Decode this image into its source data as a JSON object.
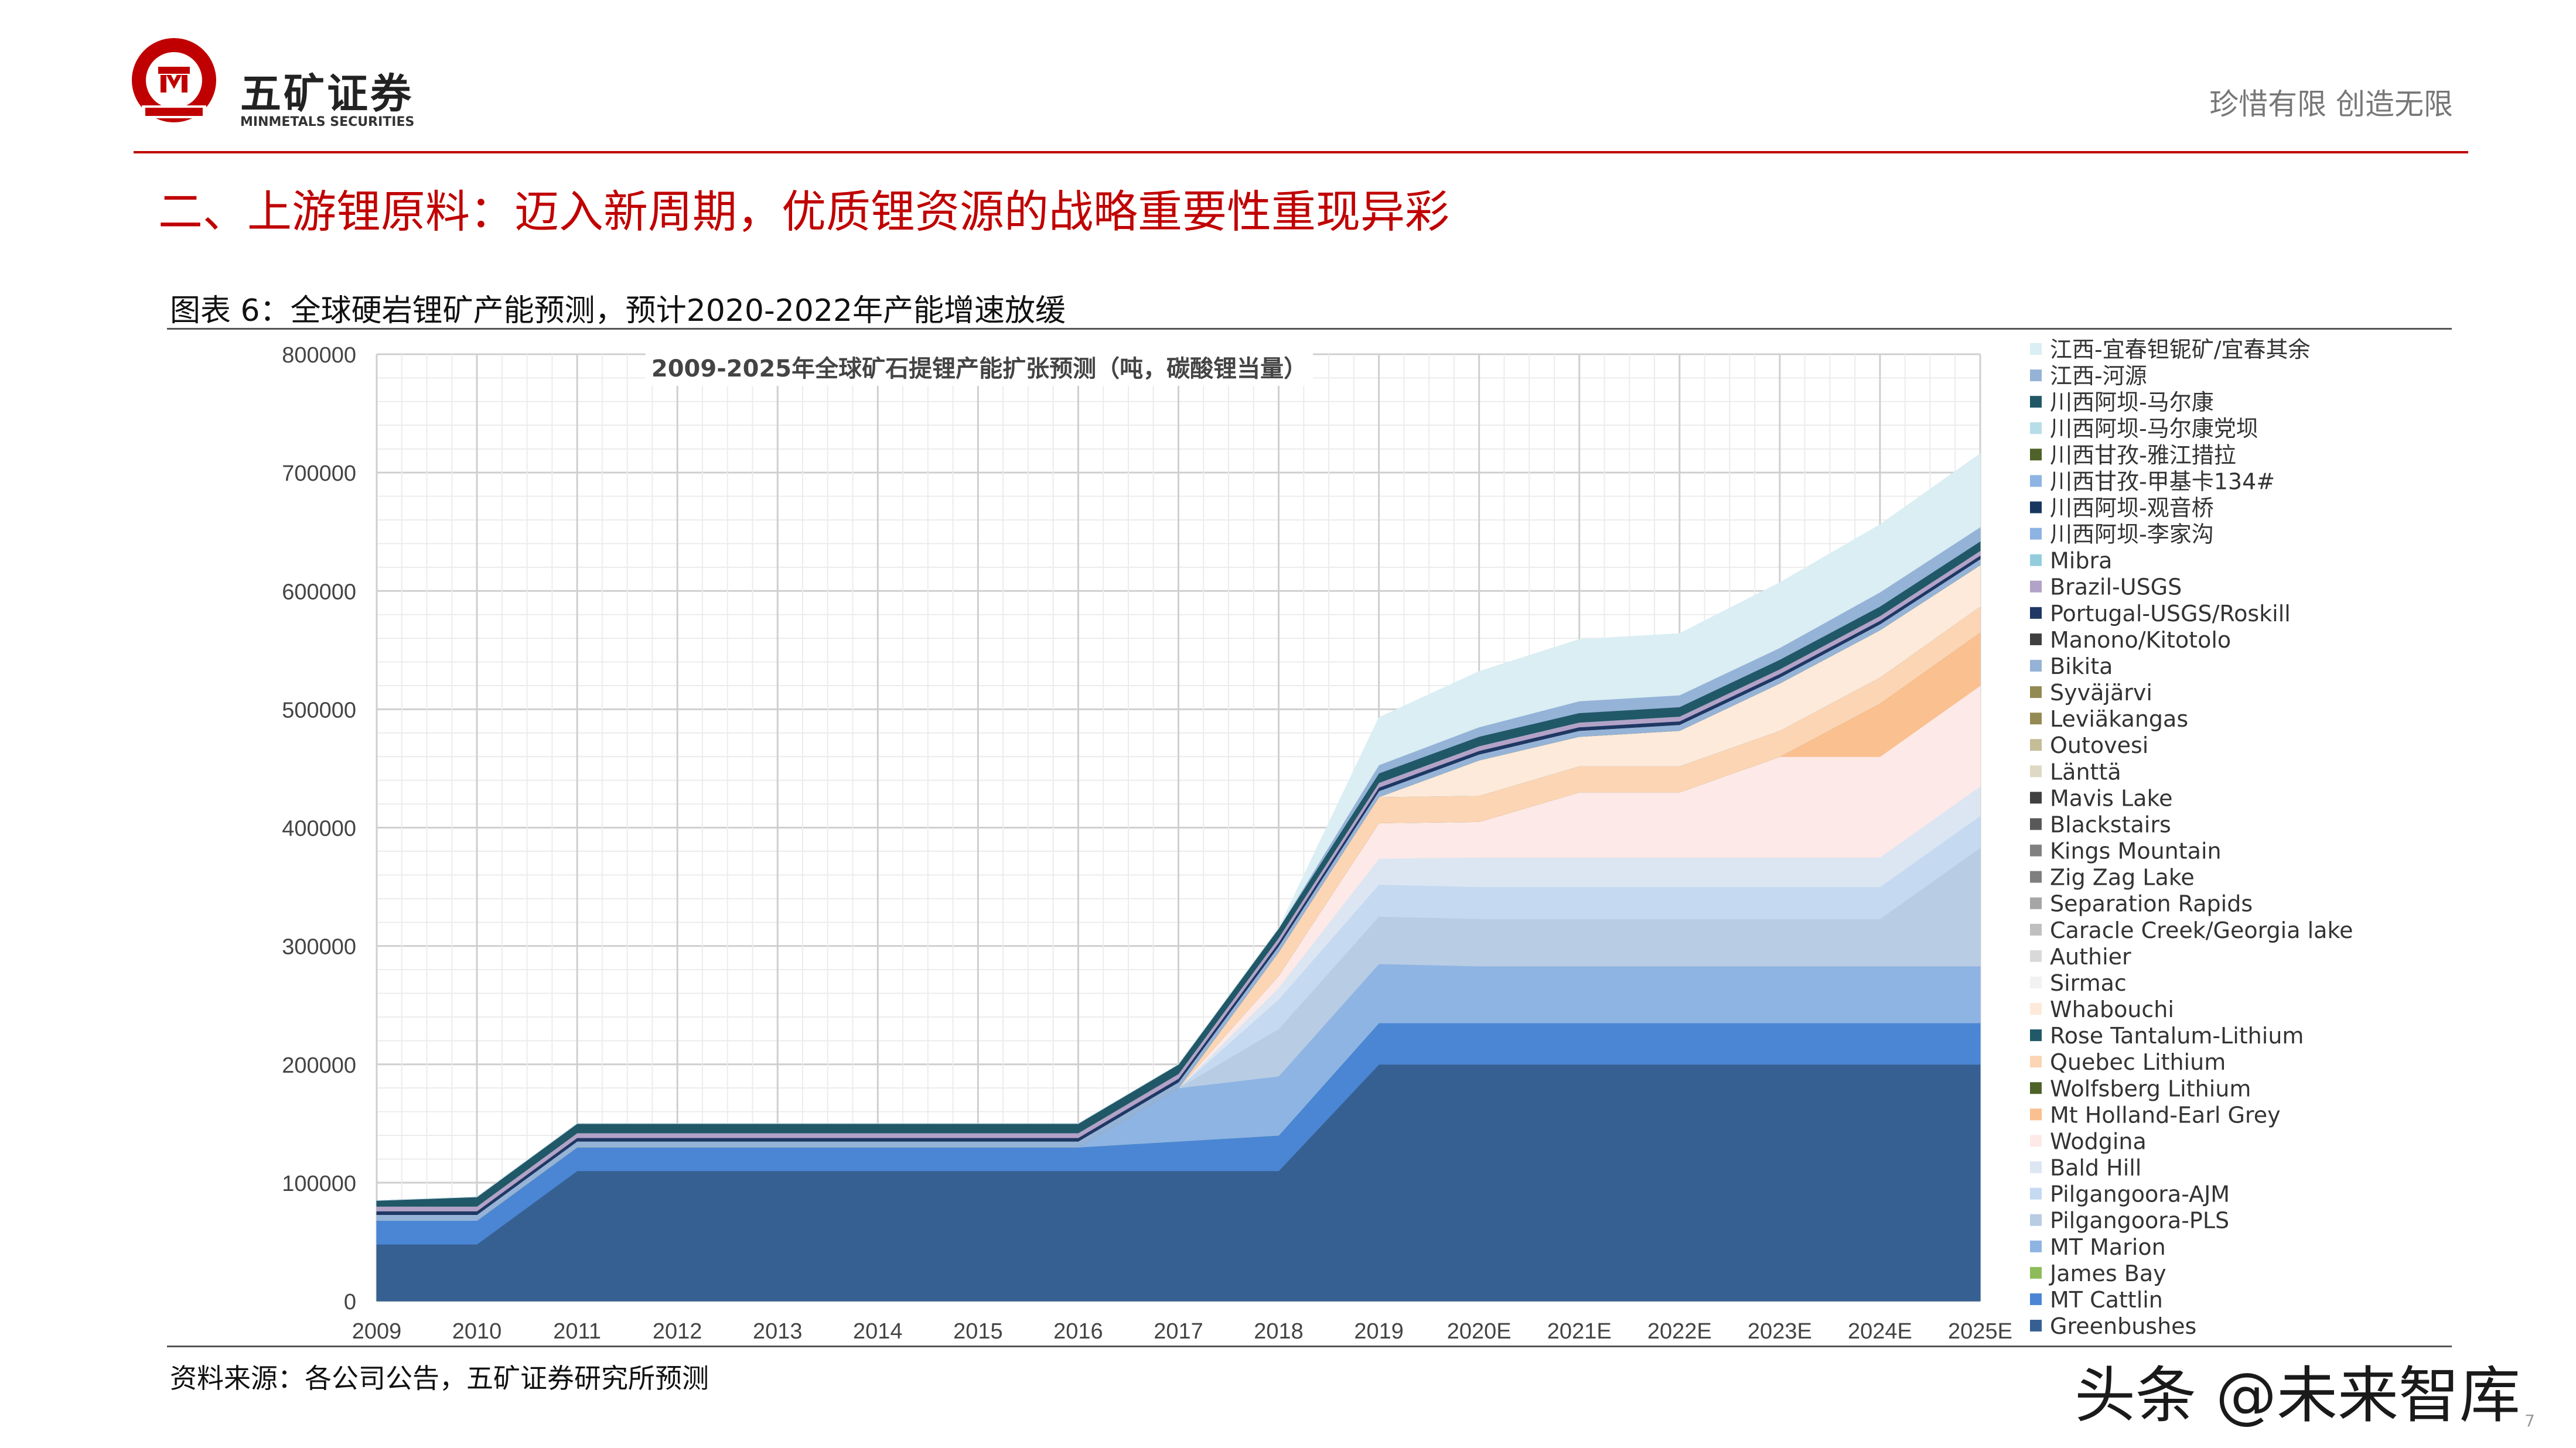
{
  "header": {
    "brand_cn": "五矿证券",
    "brand_en": "MINMETALS SECURITIES",
    "logo_ring_text": "MINMETALS",
    "slogan": "珍惜有限  创造无限"
  },
  "section_title": "二、上游锂原料：迈入新周期，优质锂资源的战略重要性重现异彩",
  "figure_caption": "图表 6：全球硬岩锂矿产能预测，预计2020-2022年产能增速放缓",
  "source": "资料来源：各公司公告，五矿证券研究所预测",
  "watermark": "头条 @未来智库",
  "page_number": "7",
  "colors": {
    "brand_red": "#c00000",
    "grid": "#d9d9d9"
  },
  "chart_data": {
    "type": "area",
    "stacked": true,
    "title": "2009-2025年全球矿石提锂产能扩张预测（吨，碳酸锂当量）",
    "xlabel": "",
    "ylabel": "",
    "ylim": [
      0,
      800000
    ],
    "yticks": [
      0,
      100000,
      200000,
      300000,
      400000,
      500000,
      600000,
      700000,
      800000
    ],
    "ytick_labels": [
      "0",
      "100000",
      "200000",
      "300000",
      "400000",
      "500000",
      "600000",
      "700000",
      "800000"
    ],
    "categories": [
      "2009",
      "2010",
      "2011",
      "2012",
      "2013",
      "2014",
      "2015",
      "2016",
      "2017",
      "2018",
      "2019",
      "2020E",
      "2021E",
      "2022E",
      "2023E",
      "2024E",
      "2025E"
    ],
    "grid": true,
    "legend_position": "right",
    "series": [
      {
        "name": "Greenbushes",
        "color": "#376092",
        "values": [
          48000,
          48000,
          110000,
          110000,
          110000,
          110000,
          110000,
          110000,
          110000,
          110000,
          200000,
          200000,
          200000,
          200000,
          200000,
          200000,
          200000
        ]
      },
      {
        "name": "MT Cattlin",
        "color": "#4a86d4",
        "values": [
          20000,
          20000,
          20000,
          20000,
          20000,
          20000,
          20000,
          20000,
          25000,
          30000,
          35000,
          35000,
          35000,
          35000,
          35000,
          35000,
          35000
        ]
      },
      {
        "name": "James Bay",
        "color": "#8fbc5a",
        "values": [
          0,
          0,
          0,
          0,
          0,
          0,
          0,
          0,
          0,
          0,
          0,
          0,
          0,
          0,
          0,
          0,
          0
        ]
      },
      {
        "name": "MT Marion",
        "color": "#8eb4e3",
        "values": [
          0,
          0,
          0,
          0,
          0,
          0,
          0,
          0,
          45000,
          50000,
          50000,
          48000,
          48000,
          48000,
          48000,
          48000,
          48000
        ]
      },
      {
        "name": "Pilgangoora-PLS",
        "color": "#b8cce4",
        "values": [
          0,
          0,
          0,
          0,
          0,
          0,
          0,
          0,
          0,
          40000,
          40000,
          40000,
          40000,
          40000,
          40000,
          40000,
          100000
        ]
      },
      {
        "name": "Pilgangoora-AJM",
        "color": "#c5d9f1",
        "values": [
          0,
          0,
          0,
          0,
          0,
          0,
          0,
          0,
          0,
          25000,
          27000,
          27000,
          27000,
          27000,
          27000,
          27000,
          27000
        ]
      },
      {
        "name": "Bald Hill",
        "color": "#dce6f2",
        "values": [
          0,
          0,
          0,
          0,
          0,
          0,
          0,
          0,
          0,
          10000,
          22000,
          25000,
          25000,
          25000,
          25000,
          25000,
          25000
        ]
      },
      {
        "name": "Wodgina",
        "color": "#fde9e7",
        "values": [
          0,
          0,
          0,
          0,
          0,
          0,
          0,
          0,
          0,
          10000,
          30000,
          30000,
          55000,
          55000,
          85000,
          85000,
          85000
        ]
      },
      {
        "name": "Mt Holland-Earl Grey",
        "color": "#fac090",
        "values": [
          0,
          0,
          0,
          0,
          0,
          0,
          0,
          0,
          0,
          0,
          0,
          0,
          0,
          0,
          0,
          45000,
          45000
        ]
      },
      {
        "name": "Wolfsberg Lithium",
        "color": "#4f6228",
        "values": [
          0,
          0,
          0,
          0,
          0,
          0,
          0,
          0,
          0,
          0,
          0,
          0,
          0,
          0,
          0,
          0,
          0
        ]
      },
      {
        "name": "Quebec Lithium",
        "color": "#fcd5b4",
        "values": [
          0,
          0,
          0,
          0,
          0,
          0,
          0,
          0,
          0,
          20000,
          22000,
          22000,
          22000,
          22000,
          22000,
          22000,
          22000
        ]
      },
      {
        "name": "Rose Tantalum-Lithium",
        "color": "#215968",
        "values": [
          0,
          0,
          0,
          0,
          0,
          0,
          0,
          0,
          0,
          0,
          0,
          0,
          0,
          0,
          0,
          0,
          0
        ]
      },
      {
        "name": "Whabouchi",
        "color": "#fdeada",
        "values": [
          0,
          0,
          0,
          0,
          0,
          0,
          0,
          0,
          0,
          0,
          0,
          30000,
          25000,
          30000,
          40000,
          40000,
          35000
        ]
      },
      {
        "name": "Sirmac",
        "color": "#f2f2f2",
        "values": [
          0,
          0,
          0,
          0,
          0,
          0,
          0,
          0,
          0,
          0,
          0,
          0,
          0,
          0,
          0,
          0,
          0
        ]
      },
      {
        "name": "Authier",
        "color": "#d9d9d9",
        "values": [
          0,
          0,
          0,
          0,
          0,
          0,
          0,
          0,
          0,
          0,
          0,
          0,
          0,
          0,
          0,
          0,
          0
        ]
      },
      {
        "name": "Caracle Creek/Georgia lake",
        "color": "#bfbfbf",
        "values": [
          0,
          0,
          0,
          0,
          0,
          0,
          0,
          0,
          0,
          0,
          0,
          0,
          0,
          0,
          0,
          0,
          0
        ]
      },
      {
        "name": "Separation Rapids",
        "color": "#a6a6a6",
        "values": [
          0,
          0,
          0,
          0,
          0,
          0,
          0,
          0,
          0,
          0,
          0,
          0,
          0,
          0,
          0,
          0,
          0
        ]
      },
      {
        "name": "Zig Zag Lake",
        "color": "#7f7f7f",
        "values": [
          0,
          0,
          0,
          0,
          0,
          0,
          0,
          0,
          0,
          0,
          0,
          0,
          0,
          0,
          0,
          0,
          0
        ]
      },
      {
        "name": "Kings Mountain",
        "color": "#808080",
        "values": [
          0,
          0,
          0,
          0,
          0,
          0,
          0,
          0,
          0,
          0,
          0,
          0,
          0,
          0,
          0,
          0,
          0
        ]
      },
      {
        "name": "Blackstairs",
        "color": "#595959",
        "values": [
          0,
          0,
          0,
          0,
          0,
          0,
          0,
          0,
          0,
          0,
          0,
          0,
          0,
          0,
          0,
          0,
          0
        ]
      },
      {
        "name": "Mavis Lake",
        "color": "#404040",
        "values": [
          0,
          0,
          0,
          0,
          0,
          0,
          0,
          0,
          0,
          0,
          0,
          0,
          0,
          0,
          0,
          0,
          0
        ]
      },
      {
        "name": "Länttä",
        "color": "#ddd9c4",
        "values": [
          0,
          0,
          0,
          0,
          0,
          0,
          0,
          0,
          0,
          0,
          0,
          0,
          0,
          0,
          0,
          0,
          0
        ]
      },
      {
        "name": "Outovesi",
        "color": "#c4bd97",
        "values": [
          0,
          0,
          0,
          0,
          0,
          0,
          0,
          0,
          0,
          0,
          0,
          0,
          0,
          0,
          0,
          0,
          0
        ]
      },
      {
        "name": "Leviäkangas",
        "color": "#948a54",
        "values": [
          0,
          0,
          0,
          0,
          0,
          0,
          0,
          0,
          0,
          0,
          0,
          0,
          0,
          0,
          0,
          0,
          0
        ]
      },
      {
        "name": "Syväjärvi",
        "color": "#938953",
        "values": [
          0,
          0,
          0,
          0,
          0,
          0,
          0,
          0,
          0,
          0,
          0,
          0,
          0,
          0,
          0,
          0,
          0
        ]
      },
      {
        "name": "Bikita",
        "color": "#95b3d7",
        "values": [
          5000,
          5000,
          5000,
          5000,
          5000,
          5000,
          5000,
          5000,
          5000,
          5000,
          5000,
          5000,
          5000,
          5000,
          5000,
          5000,
          5000
        ]
      },
      {
        "name": "Manono/Kitotolo",
        "color": "#3f3f3f",
        "values": [
          0,
          0,
          0,
          0,
          0,
          0,
          0,
          0,
          0,
          0,
          0,
          0,
          0,
          0,
          0,
          0,
          0
        ]
      },
      {
        "name": "Portugal-USGS/Roskill",
        "color": "#1f3864",
        "values": [
          3000,
          3000,
          3000,
          3000,
          3000,
          3000,
          3000,
          3000,
          3000,
          3000,
          3000,
          3000,
          3000,
          3000,
          3000,
          3000,
          3000
        ]
      },
      {
        "name": "Brazil-USGS",
        "color": "#b3a2c7",
        "values": [
          4000,
          4000,
          4000,
          4000,
          4000,
          4000,
          4000,
          4000,
          4000,
          4000,
          4000,
          4000,
          4000,
          4000,
          4000,
          4000,
          4000
        ]
      },
      {
        "name": "Mibra",
        "color": "#93cddd",
        "values": [
          0,
          0,
          0,
          0,
          0,
          0,
          0,
          0,
          0,
          0,
          0,
          0,
          0,
          0,
          0,
          0,
          0
        ]
      },
      {
        "name": "川西阿坝-李家沟",
        "color": "#8db3e2",
        "values": [
          0,
          0,
          0,
          0,
          0,
          0,
          0,
          0,
          0,
          0,
          0,
          0,
          0,
          0,
          0,
          0,
          0
        ]
      },
      {
        "name": "川西阿坝-观音桥",
        "color": "#17375e",
        "values": [
          0,
          0,
          0,
          0,
          0,
          0,
          0,
          0,
          0,
          0,
          0,
          0,
          0,
          0,
          0,
          0,
          0
        ]
      },
      {
        "name": "川西甘孜-甲基卡134#",
        "color": "#8eb4e3",
        "values": [
          0,
          0,
          0,
          0,
          0,
          0,
          0,
          0,
          0,
          0,
          0,
          0,
          0,
          0,
          0,
          0,
          0
        ]
      },
      {
        "name": "川西甘孜-雅江措拉",
        "color": "#4f6228",
        "values": [
          0,
          0,
          0,
          0,
          0,
          0,
          0,
          0,
          0,
          0,
          0,
          0,
          0,
          0,
          0,
          0,
          0
        ]
      },
      {
        "name": "川西阿坝-马尔康党坝",
        "color": "#b7dee8",
        "values": [
          0,
          0,
          0,
          0,
          0,
          0,
          0,
          0,
          0,
          0,
          0,
          0,
          0,
          0,
          0,
          0,
          0
        ]
      },
      {
        "name": "川西阿坝-马尔康",
        "color": "#215868",
        "values": [
          5000,
          8000,
          8000,
          8000,
          8000,
          8000,
          8000,
          8000,
          8000,
          8000,
          8000,
          8000,
          8000,
          8000,
          8000,
          8000,
          8000
        ]
      },
      {
        "name": "江西-河源",
        "color": "#95b3d7",
        "values": [
          0,
          0,
          0,
          0,
          0,
          0,
          0,
          0,
          0,
          0,
          7000,
          8000,
          10000,
          10000,
          10000,
          12000,
          12000
        ]
      },
      {
        "name": "江西-宜春钽铌矿/宜春其余",
        "color": "#daeef3",
        "values": [
          0,
          0,
          0,
          0,
          0,
          0,
          0,
          0,
          0,
          0,
          40000,
          47000,
          52000,
          52000,
          55000,
          57000,
          62000
        ]
      }
    ]
  }
}
